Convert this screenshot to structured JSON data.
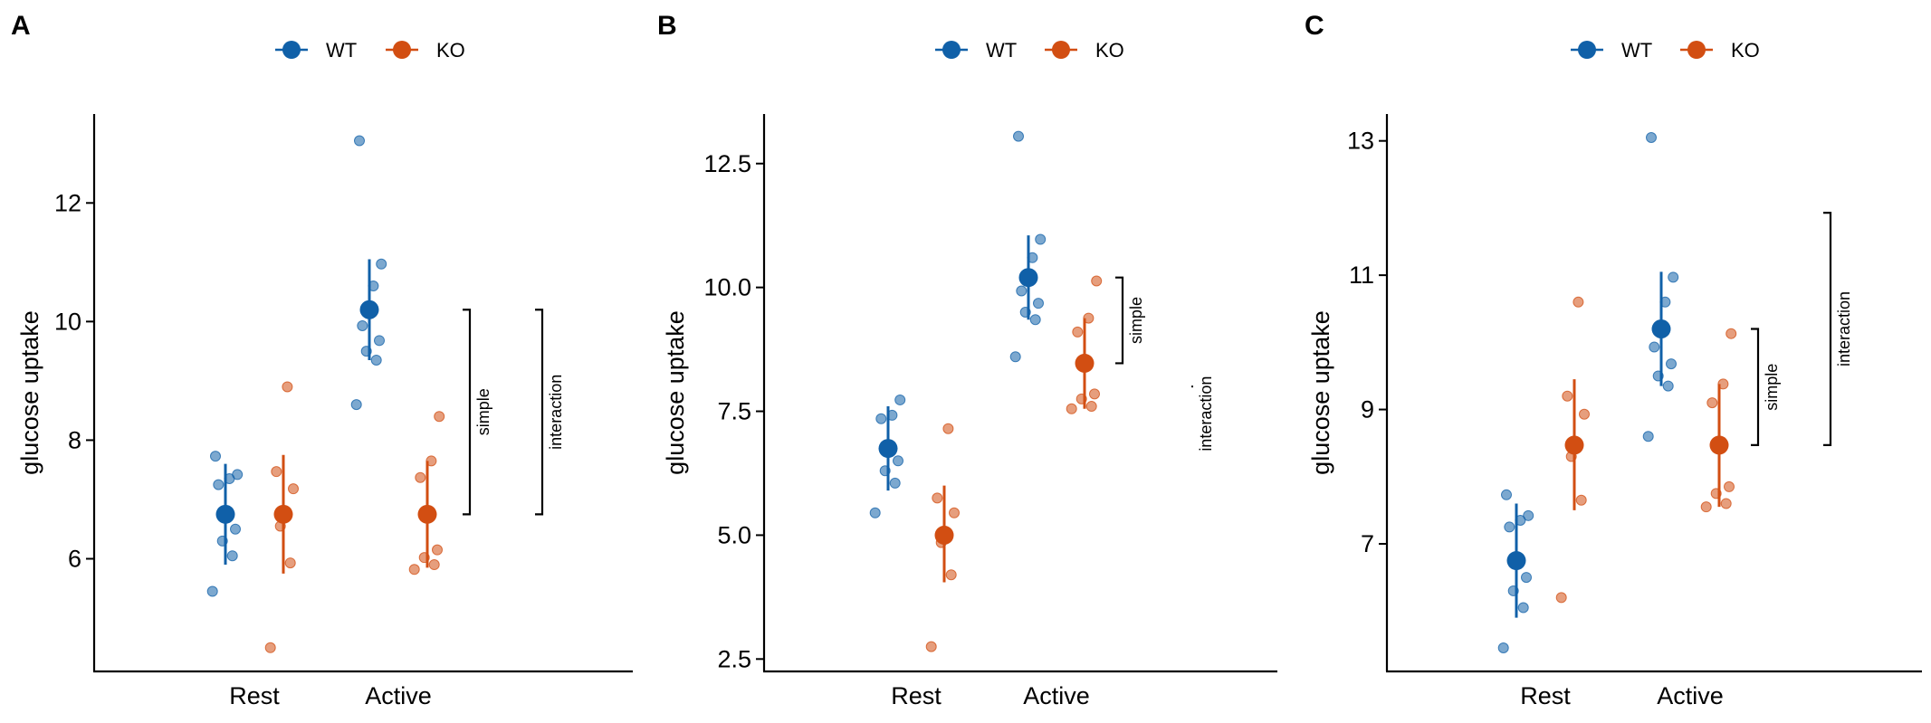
{
  "colors": {
    "WT": "#1060a8",
    "KO": "#d24e12"
  },
  "legend": [
    {
      "label": "WT",
      "series": "WT"
    },
    {
      "label": "KO",
      "series": "KO"
    }
  ],
  "chart_data": [
    {
      "panel": "A",
      "type": "scatter",
      "xlabel": "",
      "ylabel": "glucose uptake",
      "categories": [
        "Rest",
        "Active"
      ],
      "ylim": [
        4.1,
        13.5
      ],
      "yticks": [
        6,
        8,
        10,
        12
      ],
      "yticklabels": [
        "6",
        "8",
        "10",
        "12"
      ],
      "series": [
        {
          "name": "WT",
          "summary": [
            {
              "x": "Rest",
              "mean": 6.75,
              "lo": 5.9,
              "hi": 7.6
            },
            {
              "x": "Active",
              "mean": 10.2,
              "lo": 9.35,
              "hi": 11.05
            }
          ],
          "points": [
            {
              "x": "Rest",
              "values": [
                5.45,
                6.05,
                6.3,
                6.5,
                7.25,
                7.35,
                7.42,
                7.73
              ]
            },
            {
              "x": "Active",
              "values": [
                8.6,
                9.35,
                9.5,
                9.68,
                9.93,
                10.6,
                10.97,
                13.05
              ]
            }
          ]
        },
        {
          "name": "KO",
          "summary": [
            {
              "x": "Rest",
              "mean": 6.75,
              "lo": 5.75,
              "hi": 7.75
            },
            {
              "x": "Active",
              "mean": 6.75,
              "lo": 5.85,
              "hi": 7.65
            }
          ],
          "points": [
            {
              "x": "Rest",
              "values": [
                4.5,
                5.93,
                6.55,
                7.18,
                7.47,
                8.9
              ]
            },
            {
              "x": "Active",
              "values": [
                5.82,
                5.9,
                6.02,
                6.15,
                7.37,
                7.65,
                8.4
              ]
            }
          ]
        }
      ],
      "brackets": [
        {
          "label": "simple",
          "from": 6.75,
          "to": 10.2
        },
        {
          "label": "interaction",
          "from": 6.75,
          "to": 10.2
        }
      ]
    },
    {
      "panel": "B",
      "type": "scatter",
      "xlabel": "",
      "ylabel": "glucose uptake",
      "categories": [
        "Rest",
        "Active"
      ],
      "ylim": [
        2.25,
        13.5
      ],
      "yticks": [
        2.5,
        5.0,
        7.5,
        10.0,
        12.5
      ],
      "yticklabels": [
        "2.5",
        "5.0",
        "7.5",
        "10.0",
        "12.5"
      ],
      "series": [
        {
          "name": "WT",
          "summary": [
            {
              "x": "Rest",
              "mean": 6.75,
              "lo": 5.9,
              "hi": 7.6
            },
            {
              "x": "Active",
              "mean": 10.2,
              "lo": 9.35,
              "hi": 11.05
            }
          ],
          "points": [
            {
              "x": "Rest",
              "values": [
                5.45,
                6.05,
                6.3,
                6.5,
                7.35,
                7.42,
                7.73
              ]
            },
            {
              "x": "Active",
              "values": [
                8.6,
                9.35,
                9.5,
                9.68,
                9.93,
                10.6,
                10.97,
                13.05
              ]
            }
          ]
        },
        {
          "name": "KO",
          "summary": [
            {
              "x": "Rest",
              "mean": 5.0,
              "lo": 4.05,
              "hi": 6.0
            },
            {
              "x": "Active",
              "mean": 8.47,
              "lo": 7.55,
              "hi": 9.38
            }
          ],
          "points": [
            {
              "x": "Rest",
              "values": [
                2.75,
                4.2,
                4.85,
                5.45,
                5.75,
                7.15
              ]
            },
            {
              "x": "Active",
              "values": [
                7.55,
                7.6,
                7.75,
                7.85,
                9.1,
                9.38,
                10.13
              ]
            }
          ]
        }
      ],
      "brackets": [
        {
          "label": "simple",
          "from": 8.47,
          "to": 10.2
        },
        {
          "label": "interaction",
          "from": 8.0,
          "to": 8.0
        }
      ]
    },
    {
      "panel": "C",
      "type": "scatter",
      "xlabel": "",
      "ylabel": "glucose uptake",
      "categories": [
        "Rest",
        "Active"
      ],
      "ylim": [
        5.1,
        13.4
      ],
      "yticks": [
        7,
        9,
        11,
        13
      ],
      "yticklabels": [
        "7",
        "9",
        "11",
        "13"
      ],
      "series": [
        {
          "name": "WT",
          "summary": [
            {
              "x": "Rest",
              "mean": 6.75,
              "lo": 5.9,
              "hi": 7.6
            },
            {
              "x": "Active",
              "mean": 10.2,
              "lo": 9.35,
              "hi": 11.05
            }
          ],
          "points": [
            {
              "x": "Rest",
              "values": [
                5.45,
                6.05,
                6.3,
                6.5,
                7.25,
                7.35,
                7.42,
                7.73
              ]
            },
            {
              "x": "Active",
              "values": [
                8.6,
                9.35,
                9.5,
                9.68,
                9.93,
                10.6,
                10.97,
                13.05
              ]
            }
          ]
        },
        {
          "name": "KO",
          "summary": [
            {
              "x": "Rest",
              "mean": 8.47,
              "lo": 7.5,
              "hi": 9.45
            },
            {
              "x": "Active",
              "mean": 8.47,
              "lo": 7.55,
              "hi": 9.38
            }
          ],
          "points": [
            {
              "x": "Rest",
              "values": [
                6.2,
                7.65,
                8.3,
                8.93,
                9.2,
                10.6
              ]
            },
            {
              "x": "Active",
              "values": [
                7.55,
                7.6,
                7.75,
                7.85,
                9.1,
                9.38,
                10.13
              ]
            }
          ]
        }
      ],
      "brackets": [
        {
          "label": "simple",
          "from": 8.47,
          "to": 10.2
        },
        {
          "label": "interaction",
          "from": 8.47,
          "to": 11.93
        }
      ]
    }
  ]
}
